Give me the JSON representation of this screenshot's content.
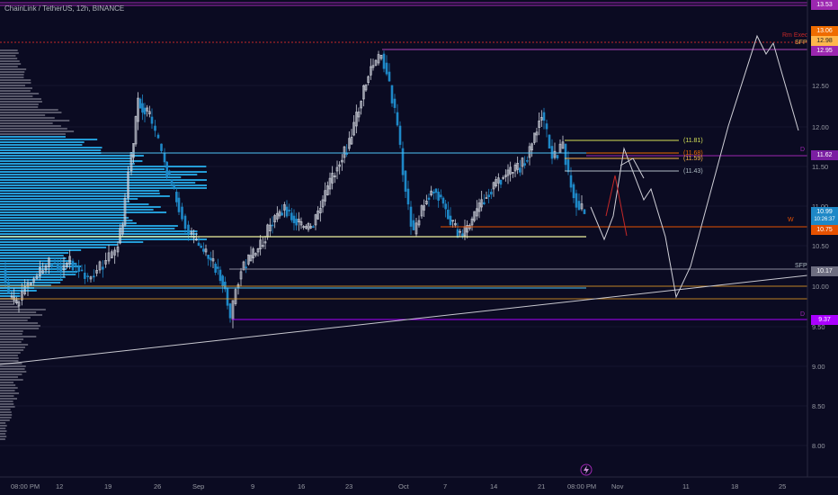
{
  "header": {
    "symbol": "ChainLink / TetherUS, 12h, BINANCE"
  },
  "colors": {
    "background": "#0b0b22",
    "up_candle": "#cfd3dc",
    "down_candle": "#1e88c7",
    "volume_profile": "#29b6f6",
    "purple": "#9c27b0",
    "cyan": "#4fc3f7",
    "yellow": "#d4e157",
    "orange": "#e65100",
    "white_line": "#c8c8d0"
  },
  "price_axis": {
    "ticks": [
      "12.50",
      "12.00",
      "11.50",
      "11.00",
      "10.50",
      "10.00",
      "9.50",
      "9.00",
      "8.50",
      "8.00"
    ],
    "tags": [
      {
        "text": "13.53",
        "color": "#9c27b0"
      },
      {
        "text": "13.06",
        "color": "#ef6c00"
      },
      {
        "text": "12.98",
        "color": "#ffb74d"
      },
      {
        "text": "12.95",
        "color": "#9c27b0"
      },
      {
        "text": "11.62",
        "color": "#7b1fa2"
      },
      {
        "text": "10.99",
        "color": "#1e88c7"
      },
      {
        "text": "10:26:37",
        "color": "#1e88c7"
      },
      {
        "text": "10.75",
        "color": "#e65100"
      },
      {
        "text": "10.17",
        "color": "#6d6d80"
      },
      {
        "text": "9.37",
        "color": "#aa00ff"
      }
    ]
  },
  "time_axis": {
    "labels": [
      "08:00 PM",
      "12",
      "19",
      "26",
      "Sep",
      "9",
      "16",
      "23",
      "Oct",
      "7",
      "14",
      "21",
      "08:00 PM",
      "Nov",
      "11",
      "18",
      "25"
    ]
  },
  "level_labels": {
    "l1181": "(11.81)",
    "l1168": "(11.68)",
    "l1159": "(11.59)",
    "l1143": "(11.43)",
    "sfp_top": "SFP",
    "rm_exec": "Rm Exec",
    "sfp_low": "SFP",
    "d_top": "D",
    "d_low": "D",
    "w_mark": "W"
  },
  "icons": {
    "bolt": "lightning-icon"
  }
}
